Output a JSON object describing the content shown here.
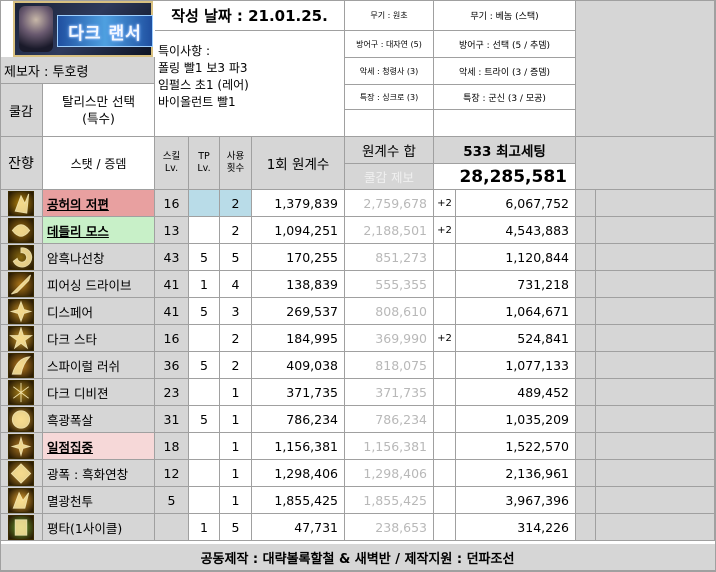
{
  "header": {
    "logo_text": "다크 랜서",
    "date_label": "작성 날짜 : 21.01.25.",
    "author": "제보자 : 투호령",
    "notes_title": "특이사항 :",
    "notes": [
      "폴링 빨1 보3 파3",
      "임펄스 초1 (레어)",
      "바이올런트 빨1"
    ],
    "mid_equips": [
      "무기 : 원초",
      "방어구 : 대자연 (5)",
      "악세 : 청령사 (3)",
      "특장 : 싱크로 (3)"
    ],
    "right_equips": [
      "무기 : 베놈 (스택)",
      "방어구 : 선택 (5 / 추뎀)",
      "악세 : 트라이 (3 / 증뎀)",
      "특장 : 군신 (3 / 모공)"
    ],
    "awakening_label": "쿨감",
    "awakening_value": "탈리스만 선택\n(특수)",
    "residual_label": "잔향",
    "stat_label": "스탯 / 증뎀",
    "col_skill_lv": "스킬\nLv.",
    "col_tp_lv": "TP\nLv.",
    "col_uses": "사용\n횟수",
    "col_single": "1회 원계수",
    "col_sum": "원계수 합",
    "col_cd": "쿨감 제보",
    "setting_title": "533 최고세팅",
    "grand_total": "28,285,581"
  },
  "rows": [
    {
      "name": "공허의 저편",
      "lv": "16",
      "tp": "",
      "uses": "2",
      "single": "1,379,839",
      "sum": "2,759,678",
      "plus": "+2",
      "total": "6,067,752",
      "highlight": "#e8a0a0",
      "tp_color": "#b9dce8",
      "uses_color": "#b9dce8",
      "icon": "void-icon",
      "icon_color": "#b8860b"
    },
    {
      "name": "데들리 모스",
      "lv": "13",
      "tp": "",
      "uses": "2",
      "single": "1,094,251",
      "sum": "2,188,501",
      "plus": "+2",
      "total": "4,543,883",
      "highlight": "#c8f0c8",
      "tp_color": "",
      "uses_color": "",
      "icon": "moth-icon",
      "icon_color": "#a07010"
    },
    {
      "name": "암흑나선창",
      "lv": "43",
      "tp": "5",
      "uses": "5",
      "single": "170,255",
      "sum": "851,273",
      "plus": "",
      "total": "1,120,844",
      "highlight": "",
      "tp_color": "",
      "uses_color": "",
      "icon": "spiral-icon",
      "icon_color": "#8a6a10"
    },
    {
      "name": "피어싱 드라이브",
      "lv": "41",
      "tp": "1",
      "uses": "4",
      "single": "138,839",
      "sum": "555,355",
      "plus": "",
      "total": "731,218",
      "highlight": "",
      "tp_color": "",
      "uses_color": "",
      "icon": "pierce-icon",
      "icon_color": "#b07818"
    },
    {
      "name": "디스페어",
      "lv": "41",
      "tp": "5",
      "uses": "3",
      "single": "269,537",
      "sum": "808,610",
      "plus": "",
      "total": "1,064,671",
      "highlight": "",
      "tp_color": "",
      "uses_color": "",
      "icon": "despair-icon",
      "icon_color": "#c08a20"
    },
    {
      "name": "다크 스타",
      "lv": "16",
      "tp": "",
      "uses": "2",
      "single": "184,995",
      "sum": "369,990",
      "plus": "+2",
      "total": "524,841",
      "highlight": "",
      "tp_color": "",
      "uses_color": "",
      "icon": "star-icon",
      "icon_color": "#d09a28"
    },
    {
      "name": "스파이럴 러쉬",
      "lv": "36",
      "tp": "5",
      "uses": "2",
      "single": "409,038",
      "sum": "818,075",
      "plus": "",
      "total": "1,077,133",
      "highlight": "",
      "tp_color": "",
      "uses_color": "",
      "icon": "rush-icon",
      "icon_color": "#c08020"
    },
    {
      "name": "다크 디비젼",
      "lv": "23",
      "tp": "",
      "uses": "1",
      "single": "371,735",
      "sum": "371,735",
      "plus": "",
      "total": "489,452",
      "highlight": "",
      "tp_color": "",
      "uses_color": "",
      "icon": "division-icon",
      "icon_color": "#a88018"
    },
    {
      "name": "흑광폭살",
      "lv": "31",
      "tp": "5",
      "uses": "1",
      "single": "786,234",
      "sum": "786,234",
      "plus": "",
      "total": "1,035,209",
      "highlight": "",
      "tp_color": "",
      "uses_color": "",
      "icon": "burst-icon",
      "icon_color": "#d8a030"
    },
    {
      "name": "일점집중",
      "lv": "18",
      "tp": "",
      "uses": "1",
      "single": "1,156,381",
      "sum": "1,156,381",
      "plus": "",
      "total": "1,522,570",
      "highlight": "#f6d8d8",
      "tp_color": "",
      "uses_color": "",
      "icon": "focus-icon",
      "icon_color": "#b07820"
    },
    {
      "name": "광폭 : 흑화연창",
      "lv": "12",
      "tp": "",
      "uses": "1",
      "single": "1,298,406",
      "sum": "1,298,406",
      "plus": "",
      "total": "2,136,961",
      "highlight": "",
      "tp_color": "",
      "uses_color": "",
      "icon": "frenzy-icon",
      "icon_color": "#c89028"
    },
    {
      "name": "멸광천투",
      "lv": "5",
      "tp": "",
      "uses": "1",
      "single": "1,855,425",
      "sum": "1,855,425",
      "plus": "",
      "total": "3,967,396",
      "highlight": "",
      "tp_color": "",
      "uses_color": "",
      "icon": "annihilate-icon",
      "icon_color": "#e0a030"
    },
    {
      "name": "평타(1사이클)",
      "lv": "",
      "tp": "1",
      "uses": "5",
      "single": "47,731",
      "sum": "238,653",
      "plus": "",
      "total": "314,226",
      "highlight": "",
      "tp_color": "",
      "uses_color": "",
      "icon": "basic-attack-icon",
      "icon_color": "#6aa030"
    }
  ],
  "footer": "공동제작 : 대략볼록할철 & 새벽반 / 제작지원 : 던파조선"
}
